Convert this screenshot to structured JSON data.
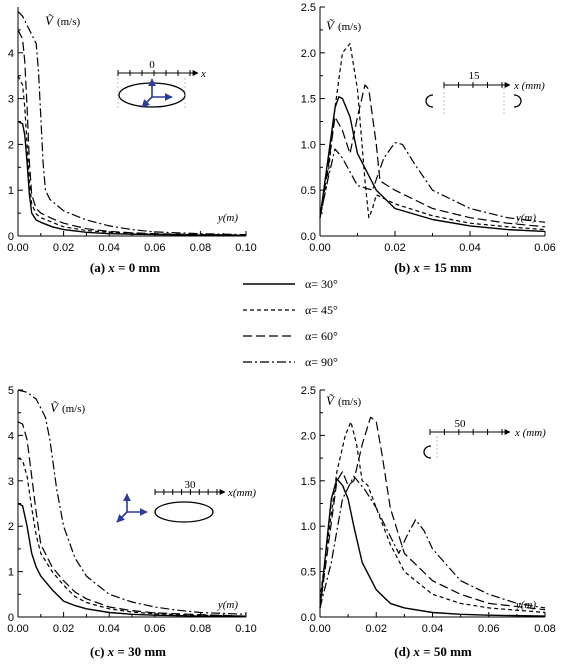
{
  "legend": [
    {
      "alpha_label": "α= 30°",
      "dash": "solid"
    },
    {
      "alpha_label": "α= 45°",
      "dash": "short-dash"
    },
    {
      "alpha_label": "α= 60°",
      "dash": "long-dash"
    },
    {
      "alpha_label": "α= 90°",
      "dash": "dash-dot"
    }
  ],
  "chart_data": [
    {
      "type": "line",
      "caption_id": "(a)",
      "caption_var": "x",
      "caption_val": " = 0 mm",
      "ylabel_sym": "Ṽ",
      "ylabel_unit": "(m/s)",
      "xlabel": "y(m)",
      "xlim": [
        0,
        0.1
      ],
      "ylim": [
        0,
        5
      ],
      "xticks": [
        "0.00",
        "0.02",
        "0.04",
        "0.06",
        "0.08",
        "0.10"
      ],
      "yticks": [
        "0",
        "1",
        "2",
        "3",
        "4"
      ],
      "inset": {
        "label": "0",
        "axis": "x"
      },
      "series": [
        {
          "x": [
            0,
            0.002,
            0.003,
            0.004,
            0.005,
            0.006,
            0.008,
            0.01,
            0.015,
            0.02,
            0.03,
            0.04,
            0.05,
            0.06,
            0.08,
            0.1
          ],
          "values": [
            2.5,
            2.45,
            2.2,
            1.6,
            0.9,
            0.5,
            0.35,
            0.3,
            0.2,
            0.14,
            0.08,
            0.05,
            0.04,
            0.03,
            0.02,
            0.01
          ]
        },
        {
          "x": [
            0,
            0.002,
            0.003,
            0.004,
            0.005,
            0.006,
            0.008,
            0.01,
            0.015,
            0.02,
            0.03,
            0.04,
            0.05,
            0.06,
            0.08,
            0.1
          ],
          "values": [
            3.5,
            3.3,
            2.8,
            2.0,
            1.2,
            0.7,
            0.48,
            0.4,
            0.3,
            0.2,
            0.12,
            0.08,
            0.06,
            0.04,
            0.03,
            0.01
          ]
        },
        {
          "x": [
            0,
            0.002,
            0.003,
            0.004,
            0.005,
            0.006,
            0.008,
            0.01,
            0.015,
            0.02,
            0.03,
            0.04,
            0.05,
            0.06,
            0.08,
            0.1
          ],
          "values": [
            4.5,
            4.3,
            3.8,
            2.8,
            1.6,
            0.9,
            0.6,
            0.5,
            0.38,
            0.28,
            0.16,
            0.1,
            0.07,
            0.05,
            0.03,
            0.02
          ]
        },
        {
          "x": [
            0,
            0.002,
            0.004,
            0.006,
            0.008,
            0.009,
            0.01,
            0.011,
            0.012,
            0.014,
            0.02,
            0.03,
            0.04,
            0.05,
            0.06,
            0.08,
            0.1
          ],
          "values": [
            4.9,
            4.8,
            4.6,
            4.4,
            4.2,
            3.6,
            2.6,
            1.6,
            1.0,
            0.8,
            0.55,
            0.35,
            0.22,
            0.14,
            0.09,
            0.05,
            0.03
          ]
        }
      ]
    },
    {
      "type": "line",
      "caption_id": "(b)",
      "caption_var": "x",
      "caption_val": " = 15 mm",
      "ylabel_sym": "Ṽ",
      "ylabel_unit": "(m/s)",
      "xlabel": "y(m)",
      "xlim": [
        0,
        0.06
      ],
      "ylim": [
        0,
        2.5
      ],
      "xticks": [
        "0.00",
        "0.02",
        "0.04",
        "0.06"
      ],
      "yticks": [
        "0.0",
        "0.5",
        "1.0",
        "1.5",
        "2.0",
        "2.5"
      ],
      "inset": {
        "label": "15",
        "axis": "x (mm)"
      },
      "series": [
        {
          "x": [
            0,
            0.002,
            0.004,
            0.005,
            0.006,
            0.008,
            0.01,
            0.015,
            0.02,
            0.03,
            0.04,
            0.05,
            0.06
          ],
          "values": [
            0.2,
            0.8,
            1.4,
            1.52,
            1.5,
            1.3,
            0.9,
            0.5,
            0.3,
            0.18,
            0.11,
            0.07,
            0.05
          ]
        },
        {
          "x": [
            0,
            0.002,
            0.004,
            0.006,
            0.008,
            0.01,
            0.012,
            0.013,
            0.014,
            0.015,
            0.02,
            0.03,
            0.04,
            0.05,
            0.06
          ],
          "values": [
            0.2,
            0.6,
            1.4,
            2.0,
            2.1,
            1.6,
            0.6,
            0.2,
            0.3,
            0.45,
            0.35,
            0.22,
            0.14,
            0.1,
            0.07
          ]
        },
        {
          "x": [
            0,
            0.002,
            0.004,
            0.006,
            0.008,
            0.01,
            0.012,
            0.013,
            0.015,
            0.016,
            0.02,
            0.03,
            0.04,
            0.05,
            0.06
          ],
          "values": [
            0.2,
            0.7,
            1.3,
            1.15,
            0.9,
            1.3,
            1.65,
            1.6,
            1.0,
            0.6,
            0.5,
            0.3,
            0.2,
            0.14,
            0.1
          ]
        },
        {
          "x": [
            0,
            0.002,
            0.004,
            0.006,
            0.008,
            0.01,
            0.014,
            0.017,
            0.02,
            0.022,
            0.025,
            0.03,
            0.04,
            0.05,
            0.06
          ],
          "values": [
            0.2,
            0.6,
            0.95,
            0.85,
            0.7,
            0.55,
            0.5,
            0.85,
            1.02,
            1.0,
            0.8,
            0.5,
            0.3,
            0.2,
            0.15
          ]
        }
      ]
    },
    {
      "type": "line",
      "caption_id": "(c)",
      "caption_var": "x",
      "caption_val": " = 30 mm",
      "ylabel_sym": "Ṽ",
      "ylabel_unit": "(m/s)",
      "xlabel": "y(m)",
      "xlim": [
        0,
        0.1
      ],
      "ylim": [
        0,
        5
      ],
      "xticks": [
        "0.00",
        "0.02",
        "0.04",
        "0.06",
        "0.08",
        "0.10"
      ],
      "yticks": [
        "0",
        "1",
        "2",
        "3",
        "4",
        "5"
      ],
      "inset": {
        "label": "30",
        "axis": "x(mm)"
      },
      "series": [
        {
          "x": [
            0,
            0.002,
            0.004,
            0.006,
            0.008,
            0.01,
            0.015,
            0.02,
            0.025,
            0.03,
            0.04,
            0.05,
            0.06,
            0.08,
            0.1
          ],
          "values": [
            2.5,
            2.45,
            2.0,
            1.4,
            1.1,
            0.9,
            0.6,
            0.35,
            0.25,
            0.18,
            0.1,
            0.06,
            0.04,
            0.02,
            0.01
          ]
        },
        {
          "x": [
            0,
            0.002,
            0.004,
            0.006,
            0.008,
            0.01,
            0.015,
            0.02,
            0.025,
            0.03,
            0.04,
            0.05,
            0.06,
            0.08,
            0.1
          ],
          "values": [
            3.5,
            3.45,
            3.1,
            2.4,
            1.8,
            1.4,
            1.0,
            0.7,
            0.45,
            0.32,
            0.18,
            0.11,
            0.07,
            0.04,
            0.02
          ]
        },
        {
          "x": [
            0,
            0.002,
            0.004,
            0.006,
            0.008,
            0.01,
            0.015,
            0.02,
            0.025,
            0.03,
            0.04,
            0.05,
            0.06,
            0.08,
            0.1
          ],
          "values": [
            4.3,
            4.25,
            3.9,
            3.1,
            2.3,
            1.6,
            1.1,
            0.8,
            0.55,
            0.4,
            0.22,
            0.14,
            0.09,
            0.05,
            0.02
          ]
        },
        {
          "x": [
            0,
            0.004,
            0.008,
            0.012,
            0.014,
            0.017,
            0.02,
            0.025,
            0.03,
            0.04,
            0.05,
            0.06,
            0.07,
            0.08,
            0.1
          ],
          "values": [
            5.0,
            4.95,
            4.8,
            4.4,
            3.9,
            2.8,
            2.0,
            1.3,
            0.9,
            0.5,
            0.33,
            0.22,
            0.15,
            0.1,
            0.06
          ]
        }
      ]
    },
    {
      "type": "line",
      "caption_id": "(d)",
      "caption_var": "x",
      "caption_val": " = 50 mm",
      "ylabel_sym": "Ṽ",
      "ylabel_unit": "(m/s)",
      "xlabel": "y(m)",
      "xlim": [
        0,
        0.08
      ],
      "ylim": [
        0,
        2.5
      ],
      "xticks": [
        "0.00",
        "0.02",
        "0.04",
        "0.06",
        "0.08"
      ],
      "yticks": [
        "0.0",
        "0.5",
        "1.0",
        "1.5",
        "2.0",
        "2.5"
      ],
      "inset": {
        "label": "50",
        "axis": "x (mm)"
      },
      "series": [
        {
          "x": [
            0,
            0.002,
            0.004,
            0.006,
            0.008,
            0.01,
            0.012,
            0.015,
            0.02,
            0.025,
            0.03,
            0.04,
            0.05,
            0.06,
            0.08
          ],
          "values": [
            0.1,
            0.7,
            1.3,
            1.52,
            1.45,
            1.3,
            1.0,
            0.6,
            0.3,
            0.15,
            0.1,
            0.05,
            0.03,
            0.02,
            0.01
          ]
        },
        {
          "x": [
            0,
            0.003,
            0.006,
            0.009,
            0.011,
            0.013,
            0.015,
            0.017,
            0.02,
            0.025,
            0.03,
            0.04,
            0.05,
            0.06,
            0.08
          ],
          "values": [
            0.2,
            0.9,
            1.6,
            2.0,
            2.15,
            1.9,
            1.5,
            1.45,
            1.2,
            0.8,
            0.5,
            0.25,
            0.15,
            0.1,
            0.05
          ]
        },
        {
          "x": [
            0,
            0.003,
            0.006,
            0.008,
            0.01,
            0.012,
            0.015,
            0.018,
            0.02,
            0.022,
            0.025,
            0.03,
            0.04,
            0.05,
            0.06,
            0.08
          ],
          "values": [
            0.1,
            0.8,
            1.5,
            1.6,
            1.45,
            1.5,
            1.9,
            2.2,
            2.15,
            1.8,
            1.2,
            0.7,
            0.4,
            0.25,
            0.15,
            0.08
          ]
        },
        {
          "x": [
            0,
            0.004,
            0.008,
            0.012,
            0.016,
            0.02,
            0.024,
            0.028,
            0.031,
            0.034,
            0.037,
            0.04,
            0.05,
            0.06,
            0.07,
            0.08
          ],
          "values": [
            0.1,
            0.6,
            1.3,
            1.55,
            1.4,
            1.2,
            0.95,
            0.7,
            0.9,
            1.07,
            0.95,
            0.75,
            0.4,
            0.25,
            0.15,
            0.1
          ]
        }
      ]
    }
  ]
}
